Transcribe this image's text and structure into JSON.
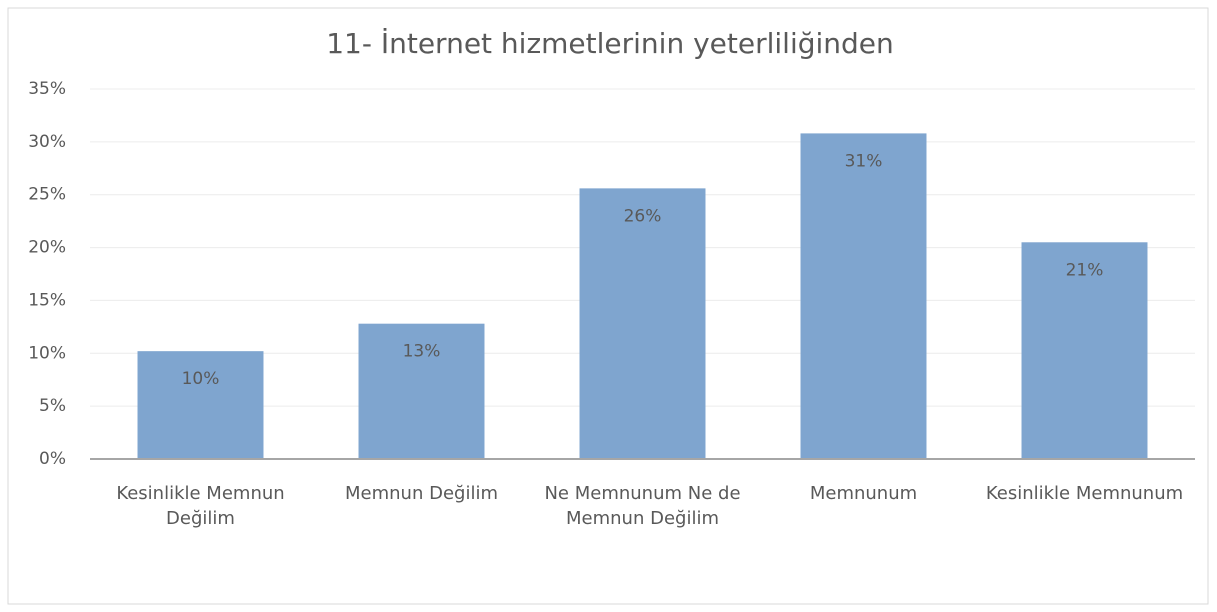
{
  "chart_data": {
    "type": "bar",
    "title": "11- İnternet hizmetlerinin yeterliliğinden",
    "categories": [
      "Kesinlikle Memnun Değilim",
      "Memnun Değilim",
      "Ne Memnunum Ne de Memnun Değilim",
      "Memnunum",
      "Kesinlikle Memnunum"
    ],
    "values": [
      10.2,
      12.8,
      25.6,
      30.8,
      20.5
    ],
    "value_labels": [
      "10%",
      "13%",
      "26%",
      "31%",
      "21%"
    ],
    "color": "#7fa5cf",
    "ylim": [
      0,
      35
    ],
    "yticks": [
      {
        "value": 0,
        "label": "0%"
      },
      {
        "value": 5,
        "label": "5%"
      },
      {
        "value": 10,
        "label": "10%"
      },
      {
        "value": 15,
        "label": "15%"
      },
      {
        "value": 20,
        "label": "20%"
      },
      {
        "value": 25,
        "label": "25%"
      },
      {
        "value": 30,
        "label": "30%"
      },
      {
        "value": 35,
        "label": "35%"
      }
    ],
    "grid": true
  }
}
